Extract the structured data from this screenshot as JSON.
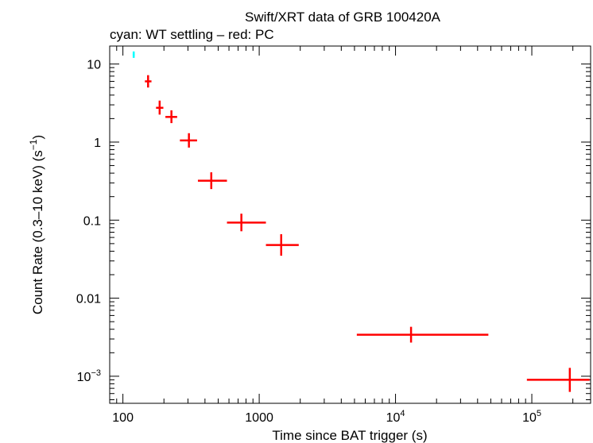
{
  "chart_data": {
    "type": "scatter",
    "title": "Swift/XRT data of GRB 100420A",
    "subtitle": "cyan: WT settling – red: PC",
    "xlabel": "Time since BAT trigger (s)",
    "ylabel_main": "Count Rate (0.3–10 keV) (s",
    "ylabel_exp": "−1",
    "ylabel_close": ")",
    "x_scale": "log",
    "y_scale": "log",
    "xlim": [
      80,
      270000
    ],
    "ylim": [
      0.00045,
      17
    ],
    "grid": false,
    "x_ticks": [
      {
        "value": 100,
        "base": "100",
        "exp": ""
      },
      {
        "value": 1000,
        "base": "1000",
        "exp": ""
      },
      {
        "value": 10000,
        "base": "10",
        "exp": "4"
      },
      {
        "value": 100000,
        "base": "10",
        "exp": "5"
      }
    ],
    "y_ticks": [
      {
        "value": 10,
        "base": "10",
        "exp": ""
      },
      {
        "value": 1,
        "base": "1",
        "exp": ""
      },
      {
        "value": 0.1,
        "base": "0.1",
        "exp": ""
      },
      {
        "value": 0.01,
        "base": "0.01",
        "exp": ""
      },
      {
        "value": 0.001,
        "base": "10",
        "exp": "−3"
      }
    ],
    "series": [
      {
        "name": "WT settling",
        "color": "#00ffff",
        "points": [
          {
            "x": 120,
            "x_lo": 118,
            "x_hi": 122,
            "y": 13.2,
            "y_lo": 12.0,
            "y_hi": 14.5
          }
        ]
      },
      {
        "name": "PC",
        "color": "#ff0000",
        "points": [
          {
            "x": 153,
            "x_lo": 145,
            "x_hi": 162,
            "y": 6.0,
            "y_lo": 5.0,
            "y_hi": 7.2
          },
          {
            "x": 186,
            "x_lo": 175,
            "x_hi": 198,
            "y": 2.75,
            "y_lo": 2.25,
            "y_hi": 3.4
          },
          {
            "x": 227,
            "x_lo": 205,
            "x_hi": 250,
            "y": 2.1,
            "y_lo": 1.75,
            "y_hi": 2.55
          },
          {
            "x": 305,
            "x_lo": 262,
            "x_hi": 350,
            "y": 1.05,
            "y_lo": 0.85,
            "y_hi": 1.3
          },
          {
            "x": 445,
            "x_lo": 355,
            "x_hi": 580,
            "y": 0.32,
            "y_lo": 0.25,
            "y_hi": 0.41
          },
          {
            "x": 740,
            "x_lo": 580,
            "x_hi": 1120,
            "y": 0.093,
            "y_lo": 0.072,
            "y_hi": 0.121
          },
          {
            "x": 1450,
            "x_lo": 1120,
            "x_hi": 1950,
            "y": 0.048,
            "y_lo": 0.035,
            "y_hi": 0.066
          },
          {
            "x": 13000,
            "x_lo": 5200,
            "x_hi": 48000,
            "y": 0.0034,
            "y_lo": 0.0027,
            "y_hi": 0.0043
          },
          {
            "x": 190000,
            "x_lo": 92000,
            "x_hi": 265000,
            "y": 0.0009,
            "y_lo": 0.00063,
            "y_hi": 0.00128
          }
        ]
      }
    ]
  }
}
